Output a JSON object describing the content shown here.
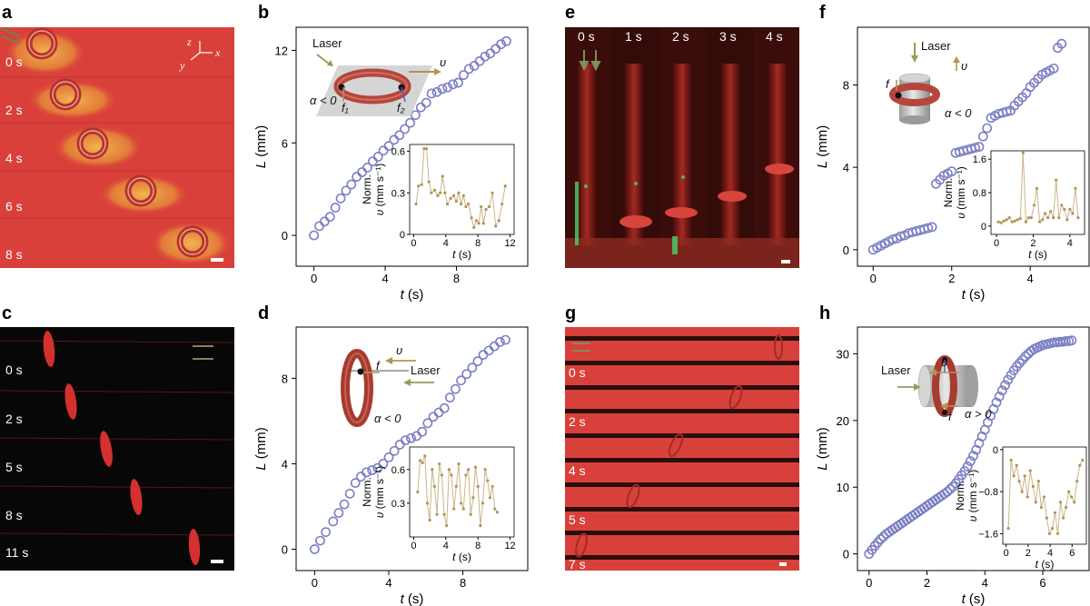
{
  "panel_labels": [
    "a",
    "b",
    "c",
    "d",
    "e",
    "f",
    "g",
    "h"
  ],
  "photo_time_labels": {
    "a": [
      "0 s",
      "2 s",
      "4 s",
      "6 s",
      "8 s"
    ],
    "c": [
      "0 s",
      "2 s",
      "5 s",
      "8 s",
      "11 s"
    ],
    "e": [
      "0 s",
      "1 s",
      "2 s",
      "3 s",
      "4 s"
    ],
    "g": [
      "0 s",
      "2 s",
      "4 s",
      "5 s",
      "7 s"
    ]
  },
  "axes_triad": {
    "z": "z",
    "y": "y",
    "x": "x"
  },
  "schematics": {
    "b": {
      "laser": "Laser",
      "v": "υ",
      "alpha": "α < 0",
      "f1": "f₁",
      "f2": "f₂"
    },
    "d": {
      "laser": "Laser",
      "v": "υ",
      "f": "f",
      "alpha": "α < 0"
    },
    "f": {
      "laser": "Laser",
      "v": "υ",
      "f": "f",
      "alpha": "α < 0"
    },
    "h": {
      "laser": "Laser",
      "v": "υ",
      "f": "f",
      "alpha": "α > 0"
    }
  },
  "colors": {
    "marker": "#7b7fc4",
    "inset_line": "#c9b48a",
    "inset_marker": "#b39455",
    "tissue": "#d8393a",
    "arrow_green": "#7d8f5a"
  },
  "chart_data": [
    {
      "panel": "b",
      "type": "scatter",
      "xlabel": "t (s)",
      "ylabel": "L (mm)",
      "xlim": [
        -1,
        12
      ],
      "ylim": [
        -2,
        13.5
      ],
      "xticks": [
        0,
        4,
        8
      ],
      "yticks": [
        0,
        6,
        12
      ],
      "x": [
        0,
        0.3,
        0.6,
        0.9,
        1.2,
        1.5,
        1.8,
        2.1,
        2.4,
        2.7,
        3.0,
        3.3,
        3.6,
        3.9,
        4.2,
        4.5,
        4.8,
        5.1,
        5.4,
        5.7,
        6.0,
        6.3,
        6.6,
        6.9,
        7.2,
        7.5,
        7.8,
        8.1,
        8.4,
        8.7,
        9.0,
        9.3,
        9.6,
        9.9,
        10.2,
        10.5,
        10.8
      ],
      "y": [
        0,
        0.6,
        0.9,
        1.2,
        1.8,
        2.4,
        2.9,
        3.3,
        3.8,
        4.1,
        4.4,
        4.8,
        5.1,
        5.5,
        5.8,
        6.2,
        6.5,
        6.9,
        7.3,
        7.8,
        8.3,
        8.6,
        9.2,
        9.3,
        9.5,
        9.6,
        9.8,
        9.9,
        10.4,
        10.8,
        11.0,
        11.3,
        11.6,
        11.8,
        12.1,
        12.4,
        12.6
      ],
      "inset": {
        "xlabel": "t (s)",
        "ylabel_top": "Norm.",
        "ylabel_bottom": "υ (mm s⁻¹)",
        "xlim": [
          -0.5,
          12.5
        ],
        "ylim": [
          0,
          0.65
        ],
        "xticks": [
          0,
          4,
          8,
          12
        ],
        "yticks": [
          0,
          0.3,
          0.6
        ],
        "x": [
          0.3,
          0.6,
          1.0,
          1.3,
          1.6,
          1.9,
          2.2,
          2.6,
          3.0,
          3.3,
          3.6,
          3.9,
          4.2,
          4.6,
          5.0,
          5.3,
          5.6,
          5.9,
          6.2,
          6.5,
          6.8,
          7.2,
          7.5,
          7.8,
          8.1,
          8.4,
          8.7,
          9.0,
          9.4,
          9.8,
          10.2,
          10.6,
          11.0,
          11.4
        ],
        "y": [
          0.22,
          0.35,
          0.36,
          0.62,
          0.62,
          0.38,
          0.3,
          0.32,
          0.28,
          0.3,
          0.42,
          0.3,
          0.22,
          0.26,
          0.28,
          0.24,
          0.3,
          0.22,
          0.28,
          0.2,
          0.22,
          0.12,
          0.05,
          0.1,
          0.08,
          0.2,
          0.08,
          0.18,
          0.2,
          0.3,
          0.06,
          0.1,
          0.22,
          0.35
        ]
      }
    },
    {
      "panel": "d",
      "type": "scatter",
      "xlabel": "t (s)",
      "ylabel": "L (mm)",
      "xlim": [
        -1,
        11.5
      ],
      "ylim": [
        -1,
        10.4
      ],
      "xticks": [
        0,
        4,
        8
      ],
      "yticks": [
        0,
        4,
        8
      ],
      "x": [
        0,
        0.3,
        0.6,
        1.0,
        1.3,
        1.6,
        1.9,
        2.2,
        2.5,
        2.8,
        3.1,
        3.4,
        3.7,
        4.0,
        4.3,
        4.6,
        4.9,
        5.2,
        5.5,
        5.8,
        6.1,
        6.4,
        6.7,
        7.0,
        7.3,
        7.6,
        7.9,
        8.2,
        8.5,
        8.8,
        9.1,
        9.4,
        9.7,
        10.0,
        10.3
      ],
      "y": [
        0,
        0.4,
        0.8,
        1.3,
        1.7,
        2.1,
        2.6,
        3.1,
        3.4,
        3.6,
        3.7,
        3.8,
        4.0,
        4.3,
        4.6,
        4.9,
        5.1,
        5.2,
        5.3,
        5.5,
        5.9,
        6.2,
        6.4,
        6.6,
        7.1,
        7.5,
        7.9,
        8.2,
        8.5,
        8.8,
        9.1,
        9.3,
        9.5,
        9.7,
        9.8
      ],
      "inset": {
        "xlabel": "t (s)",
        "ylabel_top": "Norm.",
        "ylabel_bottom": "υ (mm s⁻¹)",
        "xlim": [
          -0.5,
          12.5
        ],
        "ylim": [
          0,
          0.8
        ],
        "xticks": [
          0,
          4,
          8,
          12
        ],
        "yticks": [
          0.3,
          0.6
        ],
        "x": [
          0.5,
          0.8,
          1.1,
          1.4,
          1.7,
          2.0,
          2.3,
          2.6,
          2.9,
          3.2,
          3.5,
          3.8,
          4.1,
          4.4,
          4.7,
          5.0,
          5.3,
          5.6,
          5.9,
          6.2,
          6.5,
          6.8,
          7.1,
          7.4,
          7.7,
          8.0,
          8.3,
          8.6,
          8.9,
          9.2,
          9.5,
          9.8,
          10.1,
          10.4
        ],
        "y": [
          0.4,
          0.68,
          0.66,
          0.72,
          0.3,
          0.15,
          0.6,
          0.45,
          0.2,
          0.65,
          0.55,
          0.2,
          0.1,
          0.6,
          0.55,
          0.25,
          0.45,
          0.65,
          0.3,
          0.25,
          0.55,
          0.6,
          0.2,
          0.35,
          0.62,
          0.45,
          0.1,
          0.3,
          0.6,
          0.5,
          0.35,
          0.45,
          0.25,
          0.22
        ]
      }
    },
    {
      "panel": "f",
      "type": "scatter",
      "xlabel": "t (s)",
      "ylabel": "L (mm)",
      "xlim": [
        -0.4,
        5.5
      ],
      "ylim": [
        -0.8,
        10.8
      ],
      "xticks": [
        0,
        2,
        4
      ],
      "yticks": [
        0,
        4,
        8
      ],
      "x": [
        0,
        0.1,
        0.2,
        0.3,
        0.4,
        0.5,
        0.6,
        0.7,
        0.8,
        0.9,
        1.0,
        1.1,
        1.2,
        1.3,
        1.4,
        1.5,
        1.6,
        1.7,
        1.8,
        1.9,
        2.0,
        2.1,
        2.2,
        2.3,
        2.4,
        2.5,
        2.6,
        2.7,
        2.8,
        2.9,
        3.0,
        3.1,
        3.2,
        3.3,
        3.4,
        3.5,
        3.6,
        3.7,
        3.8,
        3.9,
        4.0,
        4.1,
        4.2,
        4.3,
        4.4,
        4.5,
        4.6,
        4.7,
        4.8
      ],
      "y": [
        0,
        0.1,
        0.2,
        0.3,
        0.4,
        0.5,
        0.55,
        0.65,
        0.7,
        0.8,
        0.85,
        0.9,
        0.95,
        1.0,
        1.05,
        1.1,
        3.2,
        3.4,
        3.6,
        3.7,
        3.8,
        4.7,
        4.75,
        4.8,
        4.85,
        4.9,
        4.95,
        5.0,
        5.5,
        5.9,
        6.4,
        6.5,
        6.6,
        6.65,
        6.7,
        6.75,
        7.0,
        7.2,
        7.4,
        7.6,
        7.9,
        8.1,
        8.3,
        8.5,
        8.6,
        8.7,
        8.8,
        9.8,
        10.0
      ],
      "inset": {
        "xlabel": "t (s)",
        "ylabel_top": "Norm.",
        "ylabel_bottom": "υ (mm s⁻¹)",
        "xlim": [
          -0.3,
          4.8
        ],
        "ylim": [
          -0.2,
          1.8
        ],
        "xticks": [
          0,
          2,
          4
        ],
        "yticks": [
          0,
          0.8,
          1.6
        ],
        "x": [
          0.1,
          0.25,
          0.4,
          0.55,
          0.7,
          0.85,
          1.0,
          1.15,
          1.3,
          1.45,
          1.6,
          1.75,
          1.9,
          2.05,
          2.2,
          2.35,
          2.5,
          2.65,
          2.8,
          2.95,
          3.1,
          3.25,
          3.4,
          3.55,
          3.7,
          3.85,
          4.0,
          4.15,
          4.3,
          4.45
        ],
        "y": [
          0.1,
          0.08,
          0.12,
          0.15,
          0.2,
          0.1,
          0.12,
          0.15,
          0.18,
          1.75,
          0.1,
          0.2,
          0.2,
          0.5,
          0.9,
          0.1,
          0.15,
          0.3,
          0.2,
          0.35,
          0.2,
          1.1,
          0.2,
          0.5,
          0.4,
          0.15,
          0.4,
          0.3,
          0.9,
          0.2
        ]
      }
    },
    {
      "panel": "h",
      "type": "scatter",
      "xlabel": "t (s)",
      "ylabel": "L (mm)",
      "xlim": [
        -0.4,
        7.6
      ],
      "ylim": [
        -2.5,
        34
      ],
      "xticks": [
        0,
        2,
        4,
        6
      ],
      "yticks": [
        0,
        10,
        20,
        30
      ],
      "x": [
        0.0,
        0.1,
        0.2,
        0.3,
        0.4,
        0.5,
        0.6,
        0.7,
        0.8,
        0.9,
        1.0,
        1.1,
        1.2,
        1.3,
        1.4,
        1.5,
        1.6,
        1.7,
        1.8,
        1.9,
        2.0,
        2.1,
        2.2,
        2.3,
        2.4,
        2.5,
        2.6,
        2.7,
        2.8,
        2.9,
        3.0,
        3.1,
        3.2,
        3.3,
        3.4,
        3.5,
        3.6,
        3.7,
        3.8,
        3.9,
        4.0,
        4.1,
        4.2,
        4.3,
        4.4,
        4.5,
        4.6,
        4.7,
        4.8,
        4.9,
        5.0,
        5.1,
        5.2,
        5.3,
        5.4,
        5.5,
        5.6,
        5.7,
        5.8,
        5.9,
        6.0,
        6.1,
        6.2,
        6.3,
        6.4,
        6.5,
        6.6,
        6.7,
        6.8,
        6.9,
        7.0
      ],
      "y": [
        0.0,
        0.6,
        1.2,
        1.7,
        2.2,
        2.6,
        3.0,
        3.3,
        3.6,
        3.9,
        4.2,
        4.5,
        4.8,
        5.1,
        5.4,
        5.7,
        6.0,
        6.3,
        6.6,
        6.9,
        7.2,
        7.5,
        7.8,
        8.1,
        8.4,
        8.7,
        9.0,
        9.3,
        9.7,
        10.1,
        10.6,
        11.2,
        11.8,
        12.4,
        13.1,
        13.9,
        14.7,
        15.6,
        16.6,
        17.6,
        18.6,
        19.7,
        20.7,
        21.7,
        22.7,
        23.6,
        24.5,
        25.3,
        26.1,
        26.8,
        27.5,
        28.1,
        28.6,
        29.1,
        29.6,
        30.0,
        30.4,
        30.7,
        30.9,
        31.1,
        31.3,
        31.4,
        31.5,
        31.6,
        31.7,
        31.7,
        31.8,
        31.8,
        31.9,
        31.9,
        32.0
      ],
      "inset": {
        "xlabel": "t (s)",
        "ylabel_top": "Norm.",
        "ylabel_bottom": "υ (mm s⁻¹)",
        "xlim": [
          -0.3,
          7.3
        ],
        "ylim": [
          -1.8,
          0.05
        ],
        "xticks": [
          0,
          2,
          4,
          6
        ],
        "yticks": [
          0,
          -0.8,
          -1.6
        ],
        "x": [
          0.2,
          0.45,
          0.7,
          0.95,
          1.2,
          1.45,
          1.7,
          1.95,
          2.2,
          2.45,
          2.7,
          2.95,
          3.2,
          3.45,
          3.7,
          3.95,
          4.2,
          4.45,
          4.7,
          4.95,
          5.2,
          5.45,
          5.7,
          5.95,
          6.2,
          6.45,
          6.7,
          6.95
        ],
        "y": [
          -1.5,
          -0.2,
          -0.5,
          -0.3,
          -0.6,
          -0.8,
          -0.5,
          -0.9,
          -0.4,
          -0.7,
          -1.0,
          -0.6,
          -1.1,
          -0.9,
          -1.3,
          -1.6,
          -1.5,
          -1.2,
          -1.6,
          -1.0,
          -1.3,
          -1.1,
          -0.8,
          -0.9,
          -1.0,
          -0.6,
          -0.3,
          -0.2
        ]
      }
    }
  ]
}
